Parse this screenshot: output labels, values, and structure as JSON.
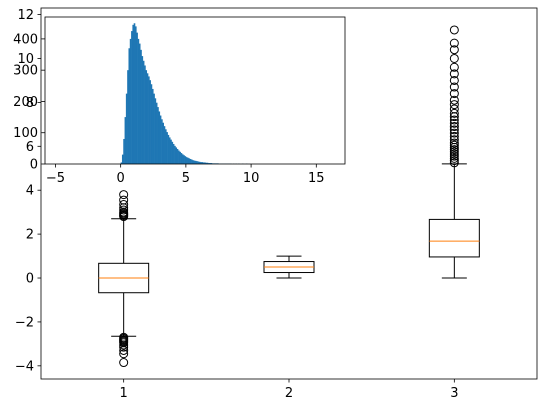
{
  "chart_data": [
    {
      "type": "boxplot",
      "title": "",
      "xlabel": "",
      "ylabel": "",
      "categories": [
        "1",
        "2",
        "3"
      ],
      "xlim": [
        0.5,
        3.5
      ],
      "ylim": [
        -4.6,
        12.3
      ],
      "yticks": [
        -4,
        -2,
        0,
        2,
        4,
        6,
        8,
        10,
        12
      ],
      "grid": false,
      "colors": {
        "box": "#000000",
        "median": "#ff7f0e",
        "outlier": "#000000"
      },
      "boxes": [
        {
          "label": "1",
          "whisker_low": -2.65,
          "q1": -0.67,
          "median": 0.0,
          "q3": 0.67,
          "whisker_high": 2.7,
          "outliers": [
            -3.85,
            -3.45,
            -3.3,
            -3.15,
            -3.05,
            -2.95,
            -2.9,
            -2.85,
            -2.8,
            -2.75,
            -2.7,
            2.8,
            2.85,
            2.9,
            2.95,
            3.0,
            3.1,
            3.2,
            3.35,
            3.55,
            3.8
          ]
        },
        {
          "label": "2",
          "whisker_low": 0.0,
          "q1": 0.25,
          "median": 0.5,
          "q3": 0.75,
          "whisker_high": 1.0,
          "outliers": []
        },
        {
          "label": "3",
          "whisker_low": 0.0,
          "q1": 0.96,
          "median": 1.68,
          "q3": 2.67,
          "whisker_high": 5.2,
          "outliers": [
            5.25,
            5.35,
            5.45,
            5.55,
            5.65,
            5.75,
            5.85,
            5.95,
            6.05,
            6.15,
            6.3,
            6.45,
            6.6,
            6.75,
            6.9,
            7.05,
            7.2,
            7.35,
            7.5,
            7.7,
            7.9,
            8.1,
            8.4,
            8.7,
            9.0,
            9.3,
            9.6,
            10.0,
            10.4,
            10.7,
            11.3
          ]
        }
      ]
    },
    {
      "type": "bar",
      "subtype": "histogram",
      "title": "",
      "xlabel": "",
      "ylabel": "",
      "xlim": [
        -5.8,
        17.2
      ],
      "ylim": [
        0,
        470
      ],
      "xticks": [
        -5,
        0,
        5,
        10,
        15
      ],
      "yticks": [
        0,
        100,
        200,
        300,
        400
      ],
      "grid": false,
      "colors": {
        "bars": "#1f77b4"
      },
      "bin_width": 0.1,
      "bin_start": 0.0,
      "counts": [
        5,
        30,
        80,
        150,
        225,
        300,
        370,
        400,
        425,
        445,
        450,
        440,
        420,
        400,
        385,
        365,
        345,
        330,
        315,
        300,
        290,
        280,
        268,
        255,
        240,
        225,
        210,
        196,
        182,
        168,
        155,
        143,
        132,
        121,
        111,
        102,
        93,
        85,
        78,
        71,
        64,
        58,
        53,
        48,
        43,
        39,
        35,
        31,
        28,
        25,
        22,
        20,
        18,
        16,
        14,
        12,
        11,
        10,
        9,
        8,
        7,
        6,
        6,
        5,
        5,
        4,
        4,
        3,
        3,
        3,
        2,
        2,
        2,
        2,
        2,
        1,
        1,
        1,
        1,
        1,
        1,
        1,
        1,
        1,
        1,
        0,
        1,
        0,
        1,
        0,
        1,
        0,
        0,
        1,
        0,
        0,
        1
      ]
    }
  ]
}
